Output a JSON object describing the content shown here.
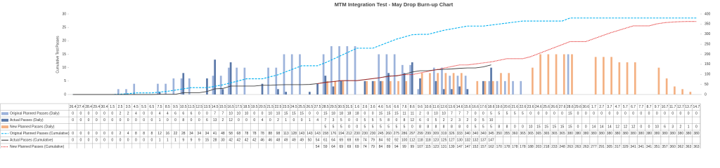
{
  "chart_data": {
    "type": "combo",
    "title": "MTM Integration Test - May Drop Burn-up Chart",
    "y_label": "Cumulative Test Passes",
    "categories": [
      "26.4",
      "27.4",
      "28.4",
      "29.4",
      "30.4",
      "1.5",
      "2.5",
      "3.5",
      "4.5",
      "5.5",
      "6.5",
      "7.5",
      "8.5",
      "9.5",
      "10.5",
      "11.5",
      "12.5",
      "13.5",
      "14.5",
      "15.5",
      "16.5",
      "17.5",
      "18.5",
      "19.5",
      "20.5",
      "21.5",
      "22.5",
      "23.5",
      "24.5",
      "25.5",
      "26.5",
      "27.5",
      "28.5",
      "29.5",
      "30.5",
      "31.5",
      "1.6",
      "2.6",
      "3.6",
      "4.6",
      "5.6",
      "6.6",
      "7.6",
      "8.6",
      "9.6",
      "10.6",
      "11.6",
      "12.6",
      "13.6",
      "14.6",
      "15.6",
      "16.6",
      "17.6",
      "18.6",
      "19.6",
      "20.6",
      "21.6",
      "22.6",
      "23.6",
      "24.6",
      "25.6",
      "26.6",
      "27.6",
      "28.6",
      "29.6",
      "30.6",
      "1.7",
      "2.7",
      "3.7",
      "4.7",
      "5.7",
      "6.7",
      "7.7",
      "8.7",
      "9.7",
      "10.7",
      "11.7",
      "12.7",
      "13.7",
      "14.7"
    ],
    "ylim": [
      0,
      30
    ],
    "yticks": [
      0,
      5,
      10,
      15,
      20,
      25,
      30
    ],
    "y2lim": [
      0,
      400
    ],
    "y2ticks": [
      0,
      50,
      100,
      150,
      200,
      250,
      300,
      350,
      400
    ],
    "grid": false,
    "series": [
      {
        "name": "Original Planned Passes (Daily)",
        "type": "bar",
        "color": "#9db3db",
        "values": [
          0,
          0,
          0,
          0,
          0,
          0,
          2,
          2,
          4,
          0,
          0,
          4,
          4,
          6,
          6,
          6,
          0,
          0,
          7,
          7,
          10,
          10,
          10,
          0,
          0,
          10,
          10,
          15,
          15,
          15,
          0,
          0,
          15,
          18,
          18,
          18,
          18,
          0,
          0,
          15,
          15,
          15,
          11,
          11,
          2,
          0,
          10,
          10,
          7,
          7,
          7,
          0,
          0,
          5,
          5,
          5,
          5,
          5,
          0,
          0,
          0,
          0,
          0,
          15,
          0,
          0,
          0,
          0,
          0,
          0,
          0,
          0,
          0,
          0,
          0,
          0,
          0,
          0,
          0,
          0
        ]
      },
      {
        "name": "Actual Passes (Daily)",
        "type": "bar",
        "color": "#5a78a8",
        "values": [
          0,
          0,
          0,
          0,
          0,
          0,
          0,
          0,
          0,
          0,
          0,
          1,
          0,
          0,
          8,
          0,
          0,
          6,
          13,
          2,
          12,
          0,
          0,
          0,
          4,
          0,
          2,
          1,
          0,
          0,
          1,
          4,
          7,
          3,
          5,
          0,
          0,
          5,
          5,
          5,
          8,
          0,
          8,
          12,
          6,
          0,
          5,
          2,
          2,
          3,
          2,
          0,
          5,
          10,
          null,
          null,
          null,
          null,
          null,
          null,
          null,
          null,
          null,
          null,
          null,
          null,
          null,
          null,
          null,
          null,
          null,
          null,
          null,
          null,
          null,
          null,
          null,
          null,
          null,
          null
        ]
      },
      {
        "name": "New Planned Passes (Daily)",
        "type": "bar",
        "color": "#f4b183",
        "values": [
          null,
          null,
          null,
          null,
          null,
          null,
          null,
          null,
          null,
          null,
          null,
          null,
          null,
          null,
          null,
          null,
          null,
          null,
          null,
          null,
          null,
          null,
          null,
          null,
          null,
          null,
          null,
          null,
          null,
          null,
          null,
          null,
          5,
          5,
          5,
          0,
          0,
          5,
          5,
          5,
          5,
          5,
          5,
          0,
          8,
          8,
          8,
          8,
          8,
          8,
          0,
          5,
          5,
          5,
          8,
          8,
          0,
          0,
          10,
          15,
          15,
          15,
          15,
          15,
          0,
          0,
          14,
          14,
          14,
          12,
          12,
          12,
          0,
          0,
          10,
          6,
          3,
          2,
          1,
          0
        ]
      },
      {
        "name": "Original Planned Passes (Cumulative)",
        "type": "line",
        "axis": "y2",
        "line_style": "dashed",
        "color": "#00b0f0",
        "values": [
          0,
          0,
          0,
          0,
          0,
          0,
          2,
          4,
          8,
          8,
          8,
          12,
          16,
          22,
          28,
          34,
          34,
          34,
          41,
          48,
          58,
          68,
          78,
          78,
          78,
          88,
          98,
          113,
          128,
          143,
          143,
          143,
          158,
          176,
          194,
          212,
          230,
          230,
          230,
          245,
          260,
          275,
          286,
          297,
          299,
          299,
          309,
          319,
          326,
          333,
          340,
          340,
          340,
          345,
          350,
          355,
          360,
          365,
          365,
          365,
          365,
          365,
          365,
          380,
          380,
          380,
          380,
          380,
          380,
          380,
          380,
          380,
          380,
          380,
          380,
          380,
          380,
          380,
          380,
          380
        ]
      },
      {
        "name": "Actual Passes (Cumulative)",
        "type": "line",
        "axis": "y2",
        "line_style": "solid",
        "color": "#404040",
        "values": [
          0,
          0,
          0,
          0,
          0,
          0,
          0,
          0,
          0,
          0,
          0,
          1,
          1,
          1,
          9,
          9,
          9,
          15,
          28,
          30,
          42,
          42,
          42,
          42,
          46,
          46,
          48,
          49,
          49,
          49,
          50,
          54,
          61,
          64,
          69,
          69,
          69,
          74,
          79,
          84,
          92,
          92,
          100,
          112,
          118,
          118,
          123,
          125,
          127,
          130,
          132,
          132,
          137,
          147,
          null,
          null,
          null,
          null,
          null,
          null,
          null,
          null,
          null,
          null,
          null,
          null,
          null,
          null,
          null,
          null,
          null,
          null,
          null,
          null,
          null,
          null,
          null,
          null,
          null,
          null
        ]
      },
      {
        "name": "New Planned Passes (Cumulative)",
        "type": "line",
        "axis": "y2",
        "line_style": "dotted",
        "color": "#e01010",
        "values": [
          null,
          null,
          null,
          null,
          null,
          null,
          null,
          null,
          null,
          null,
          null,
          null,
          null,
          null,
          null,
          null,
          null,
          null,
          null,
          null,
          null,
          null,
          null,
          null,
          null,
          null,
          null,
          null,
          null,
          null,
          null,
          54,
          59,
          64,
          69,
          69,
          69,
          74,
          79,
          84,
          89,
          94,
          99,
          99,
          107,
          115,
          123,
          131,
          139,
          147,
          147,
          152,
          157,
          162,
          170,
          178,
          178,
          178,
          188,
          203,
          218,
          233,
          248,
          263,
          263,
          263,
          277,
          291,
          305,
          317,
          329,
          341,
          341,
          341,
          351,
          357,
          360,
          362,
          363,
          363
        ]
      }
    ]
  }
}
